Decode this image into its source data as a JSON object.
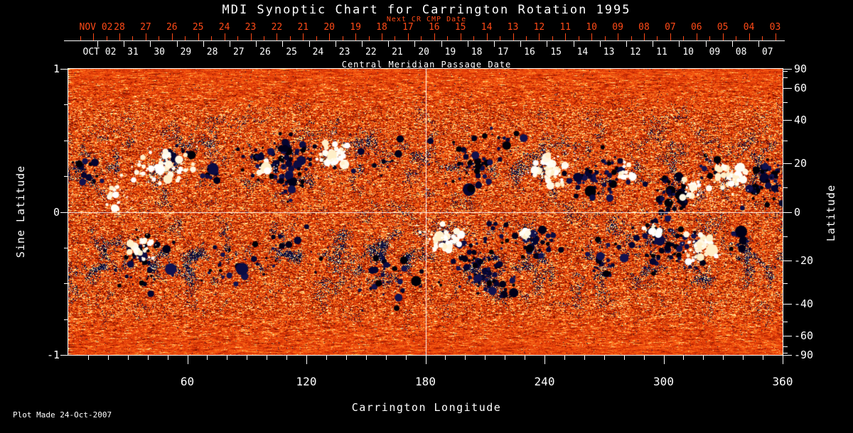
{
  "title": "MDI Synoptic Chart for Carrington Rotation 1995",
  "footer": "Plot Made 24-Oct-2007",
  "colors": {
    "background": "#000000",
    "axis_text": "#ffffff",
    "next_cr_axis": "#ff4a17",
    "crosshair": "#ffffff",
    "magnetogram_base": "#e8490c",
    "negative_polarity": "#0a0a38",
    "positive_polarity": "#fff7e2"
  },
  "chart_data": {
    "type": "heatmap",
    "title": "MDI Synoptic Chart for Carrington Rotation 1995",
    "xlabel": "Carrington Longitude",
    "ylabel_left": "Sine Latitude",
    "ylabel_right": "Latitude",
    "top_axis_primary_label": "Central Meridian Passage Date",
    "top_axis_secondary_label": "Next CR CMP Date",
    "xlim": [
      0,
      360
    ],
    "ylim_sine_latitude": [
      -1,
      1
    ],
    "x_major_ticks": [
      60,
      120,
      180,
      240,
      300,
      360
    ],
    "x_minor_tick_step": 10,
    "sine_latitude_labeled_ticks": [
      1,
      0,
      -1
    ],
    "sine_latitude_minor_tick_step": 0.25,
    "latitude_labeled_ticks": [
      90,
      60,
      40,
      20,
      0,
      -20,
      -40,
      -60,
      -90
    ],
    "latitude_minor_ticks": [
      80,
      70,
      50,
      30,
      10,
      -10,
      -30,
      -50,
      -70,
      -80
    ],
    "cmp_dates": {
      "month_label": "OCT 02",
      "days": [
        "31",
        "30",
        "29",
        "28",
        "27",
        "26",
        "25",
        "24",
        "23",
        "22",
        "21",
        "20",
        "19",
        "18",
        "17",
        "16",
        "15",
        "14",
        "13",
        "12",
        "11",
        "10",
        "09",
        "08",
        "07"
      ]
    },
    "next_cr_dates": {
      "month_label": "NOV 02",
      "days": [
        "28",
        "27",
        "26",
        "25",
        "24",
        "23",
        "22",
        "21",
        "20",
        "19",
        "18",
        "17",
        "16",
        "15",
        "14",
        "13",
        "12",
        "11",
        "10",
        "09",
        "08",
        "07",
        "06",
        "05",
        "04",
        "03"
      ]
    },
    "crosshair": {
      "carrington_longitude": 180,
      "sine_latitude": 0
    },
    "colormap_description": "noisy orange-red quiet sun; dark navy = negative polarity; white = positive polarity",
    "active_regions": [
      {
        "cx": 0.02,
        "cy": 0.35,
        "rx": 0.02,
        "ry": 0.06,
        "polarity": "negative",
        "strength": 25
      },
      {
        "cx": 0.155,
        "cy": 0.3,
        "rx": 0.02,
        "ry": 0.05,
        "polarity": "negative",
        "strength": 20
      },
      {
        "cx": 0.2,
        "cy": 0.37,
        "rx": 0.012,
        "ry": 0.03,
        "polarity": "negative",
        "strength": 12
      },
      {
        "cx": 0.3,
        "cy": 0.32,
        "rx": 0.05,
        "ry": 0.07,
        "polarity": "negative",
        "strength": 110
      },
      {
        "cx": 0.31,
        "cy": 0.41,
        "rx": 0.018,
        "ry": 0.04,
        "polarity": "negative",
        "strength": 25
      },
      {
        "cx": 0.45,
        "cy": 0.3,
        "rx": 0.05,
        "ry": 0.06,
        "polarity": "negative",
        "strength": 18
      },
      {
        "cx": 0.566,
        "cy": 0.33,
        "rx": 0.035,
        "ry": 0.09,
        "polarity": "negative",
        "strength": 55
      },
      {
        "cx": 0.62,
        "cy": 0.27,
        "rx": 0.03,
        "ry": 0.05,
        "polarity": "negative",
        "strength": 15
      },
      {
        "cx": 0.742,
        "cy": 0.37,
        "rx": 0.036,
        "ry": 0.07,
        "polarity": "negative",
        "strength": 90
      },
      {
        "cx": 0.845,
        "cy": 0.44,
        "rx": 0.03,
        "ry": 0.06,
        "polarity": "negative",
        "strength": 60
      },
      {
        "cx": 0.9,
        "cy": 0.33,
        "rx": 0.02,
        "ry": 0.05,
        "polarity": "negative",
        "strength": 15
      },
      {
        "cx": 0.975,
        "cy": 0.4,
        "rx": 0.026,
        "ry": 0.08,
        "polarity": "negative",
        "strength": 70
      },
      {
        "cx": 0.1,
        "cy": 0.66,
        "rx": 0.037,
        "ry": 0.085,
        "polarity": "negative",
        "strength": 65
      },
      {
        "cx": 0.225,
        "cy": 0.7,
        "rx": 0.03,
        "ry": 0.06,
        "polarity": "negative",
        "strength": 18
      },
      {
        "cx": 0.3,
        "cy": 0.64,
        "rx": 0.04,
        "ry": 0.07,
        "polarity": "negative",
        "strength": 25
      },
      {
        "cx": 0.45,
        "cy": 0.73,
        "rx": 0.07,
        "ry": 0.09,
        "polarity": "negative",
        "strength": 45
      },
      {
        "cx": 0.576,
        "cy": 0.66,
        "rx": 0.035,
        "ry": 0.11,
        "polarity": "negative",
        "strength": 90
      },
      {
        "cx": 0.6,
        "cy": 0.76,
        "rx": 0.04,
        "ry": 0.06,
        "polarity": "negative",
        "strength": 20
      },
      {
        "cx": 0.658,
        "cy": 0.61,
        "rx": 0.032,
        "ry": 0.055,
        "polarity": "negative",
        "strength": 45
      },
      {
        "cx": 0.745,
        "cy": 0.66,
        "rx": 0.025,
        "ry": 0.06,
        "polarity": "negative",
        "strength": 30
      },
      {
        "cx": 0.84,
        "cy": 0.62,
        "rx": 0.045,
        "ry": 0.1,
        "polarity": "negative",
        "strength": 110
      },
      {
        "cx": 0.945,
        "cy": 0.61,
        "rx": 0.017,
        "ry": 0.04,
        "polarity": "negative",
        "strength": 20
      },
      {
        "cx": 0.128,
        "cy": 0.34,
        "rx": 0.04,
        "ry": 0.07,
        "polarity": "positive",
        "strength": 70
      },
      {
        "cx": 0.065,
        "cy": 0.44,
        "rx": 0.015,
        "ry": 0.06,
        "polarity": "positive",
        "strength": 25
      },
      {
        "cx": 0.278,
        "cy": 0.35,
        "rx": 0.012,
        "ry": 0.03,
        "polarity": "positive",
        "strength": 18
      },
      {
        "cx": 0.37,
        "cy": 0.3,
        "rx": 0.018,
        "ry": 0.04,
        "polarity": "positive",
        "strength": 55
      },
      {
        "cx": 0.675,
        "cy": 0.36,
        "rx": 0.022,
        "ry": 0.05,
        "polarity": "positive",
        "strength": 65
      },
      {
        "cx": 0.78,
        "cy": 0.36,
        "rx": 0.012,
        "ry": 0.03,
        "polarity": "positive",
        "strength": 15
      },
      {
        "cx": 0.872,
        "cy": 0.42,
        "rx": 0.016,
        "ry": 0.04,
        "polarity": "positive",
        "strength": 35
      },
      {
        "cx": 0.927,
        "cy": 0.38,
        "rx": 0.02,
        "ry": 0.05,
        "polarity": "positive",
        "strength": 60
      },
      {
        "cx": 0.103,
        "cy": 0.63,
        "rx": 0.014,
        "ry": 0.035,
        "polarity": "positive",
        "strength": 30
      },
      {
        "cx": 0.522,
        "cy": 0.59,
        "rx": 0.023,
        "ry": 0.045,
        "polarity": "positive",
        "strength": 65
      },
      {
        "cx": 0.64,
        "cy": 0.585,
        "rx": 0.01,
        "ry": 0.02,
        "polarity": "positive",
        "strength": 12
      },
      {
        "cx": 0.82,
        "cy": 0.56,
        "rx": 0.012,
        "ry": 0.03,
        "polarity": "positive",
        "strength": 15
      },
      {
        "cx": 0.888,
        "cy": 0.635,
        "rx": 0.02,
        "ry": 0.05,
        "polarity": "positive",
        "strength": 55
      }
    ]
  }
}
